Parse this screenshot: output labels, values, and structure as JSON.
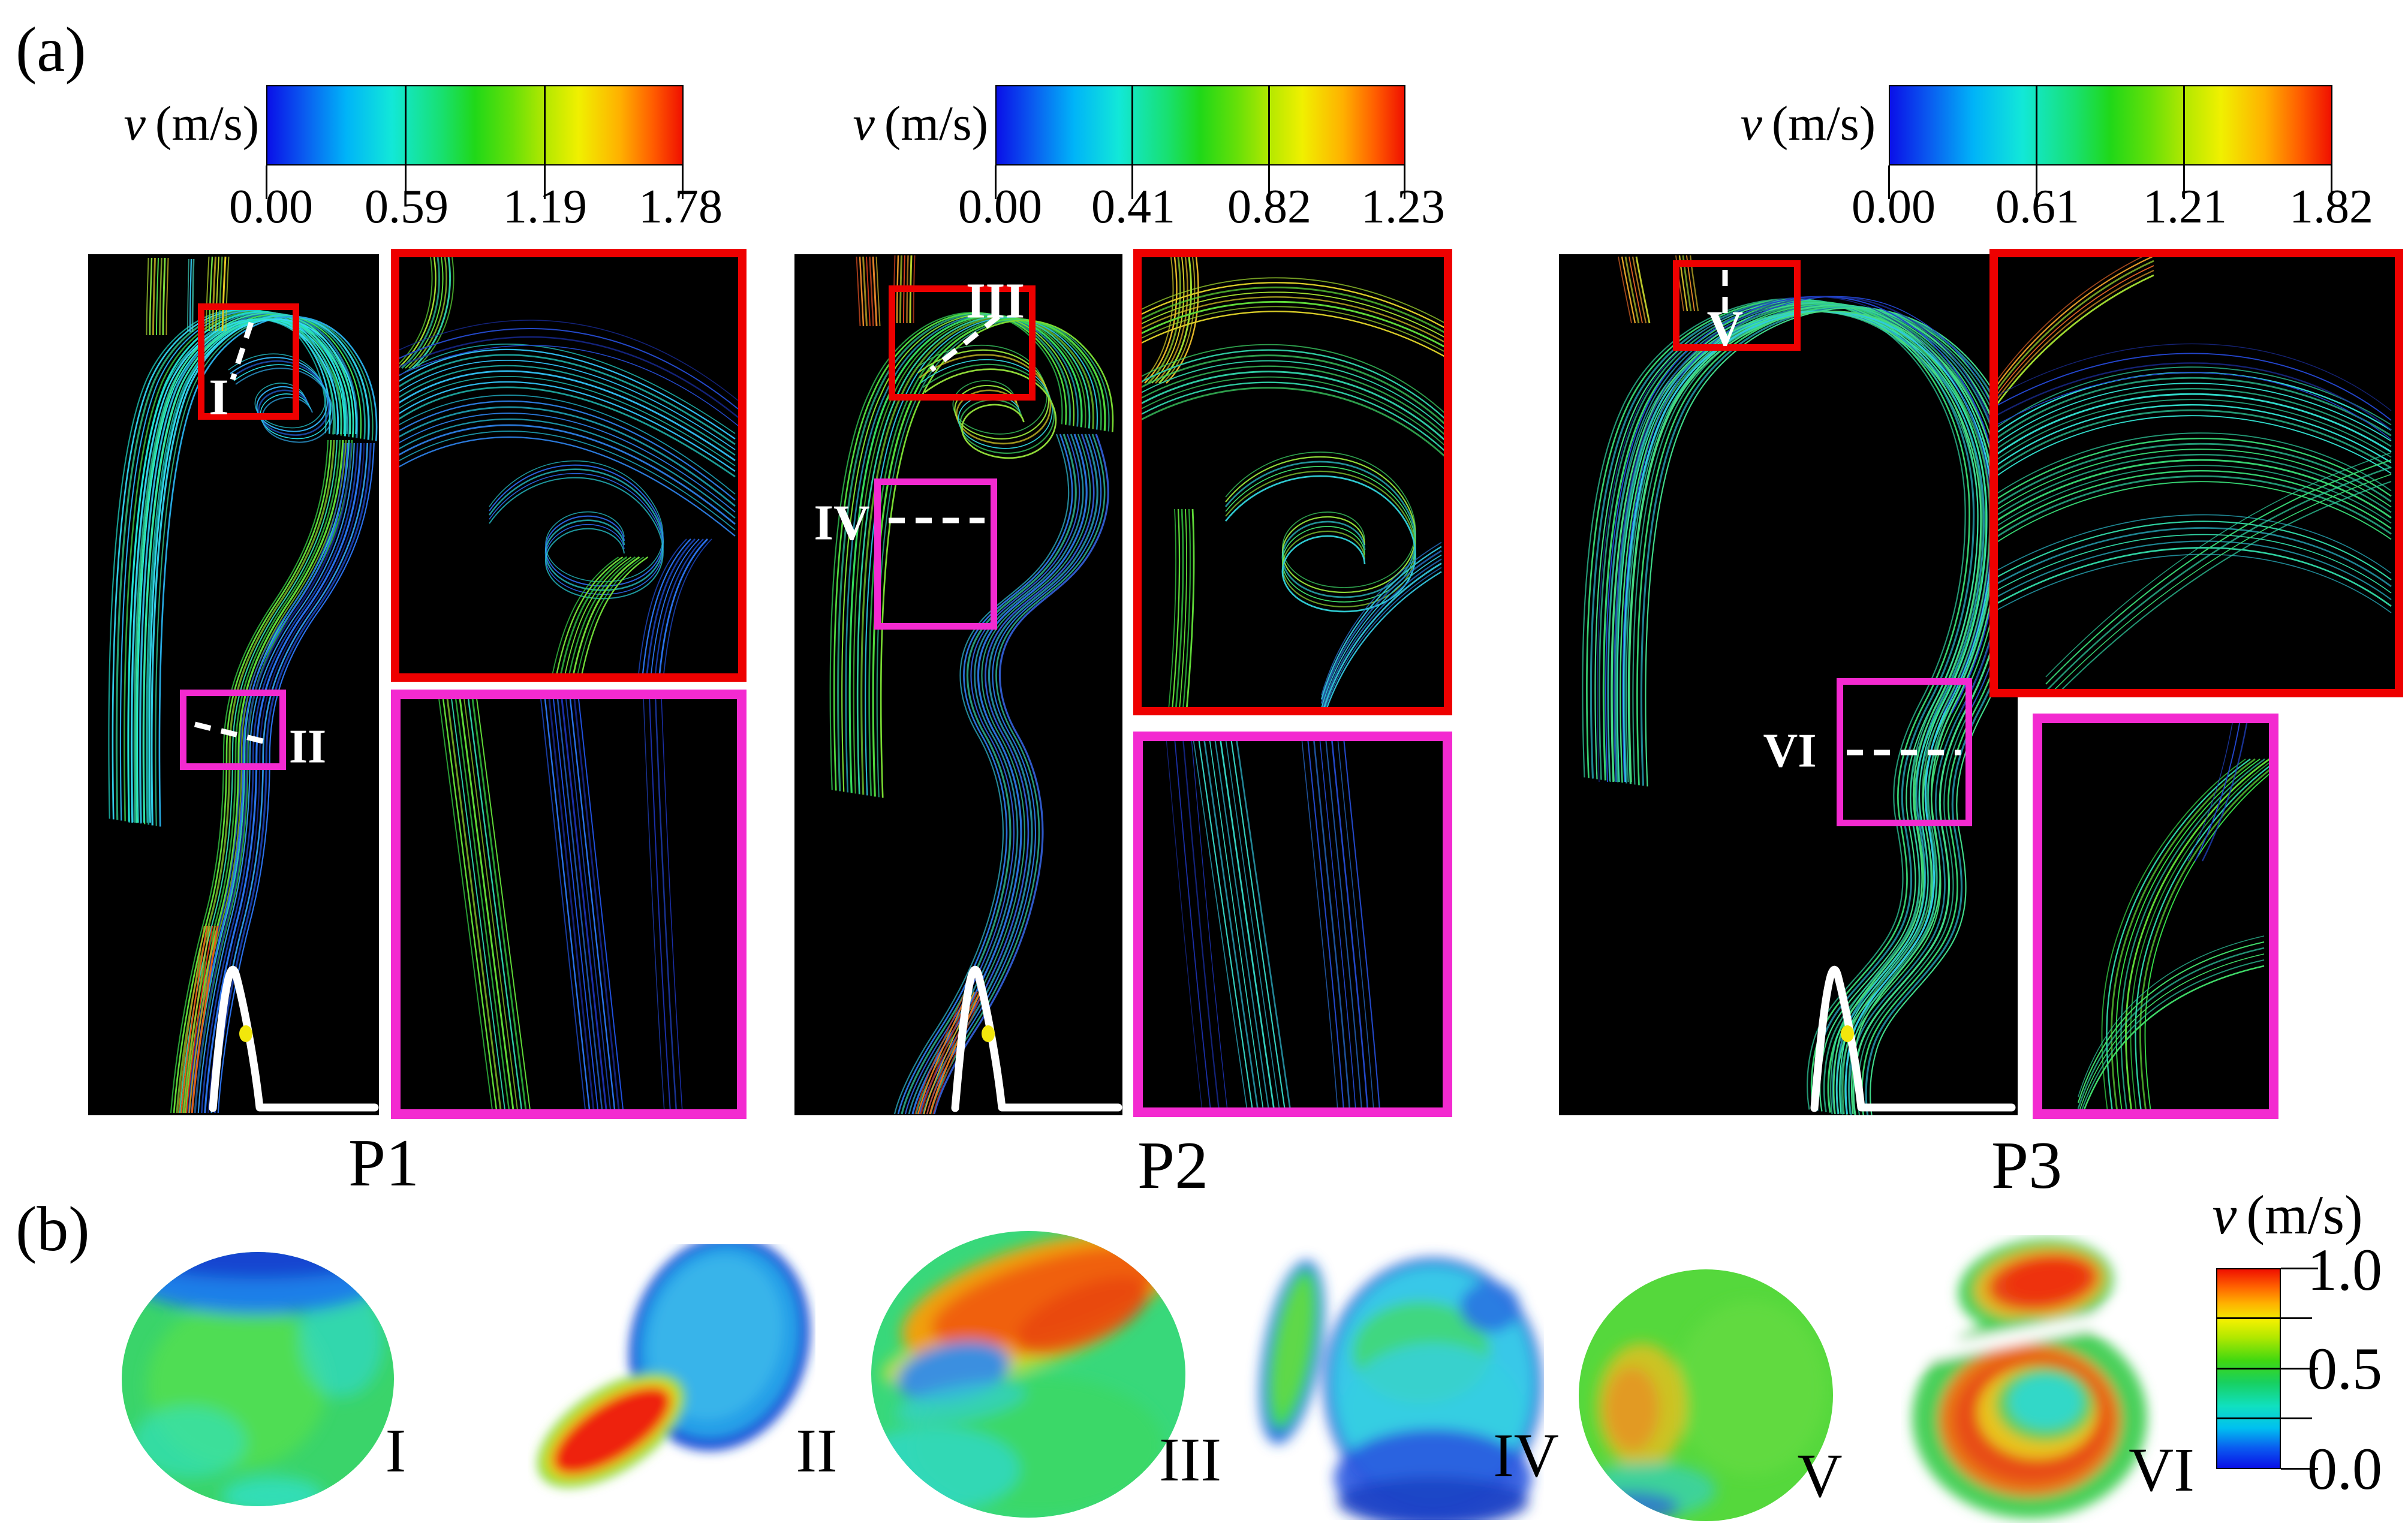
{
  "figure": {
    "panel_a_label": "(a)",
    "panel_b_label": "(b)",
    "velocity_symbol": "v",
    "velocity_unit": "(m/s)",
    "patients": [
      {
        "name": "P1",
        "colorbar": {
          "ticks": [
            "0.00",
            "0.59",
            "1.19",
            "1.78"
          ],
          "min": 0.0,
          "max": 1.78
        },
        "regions": [
          "I",
          "II"
        ]
      },
      {
        "name": "P2",
        "colorbar": {
          "ticks": [
            "0.00",
            "0.41",
            "0.82",
            "1.23"
          ],
          "min": 0.0,
          "max": 1.23
        },
        "regions": [
          "III",
          "IV"
        ]
      },
      {
        "name": "P3",
        "colorbar": {
          "ticks": [
            "0.00",
            "0.61",
            "1.21",
            "1.82"
          ],
          "min": 0.0,
          "max": 1.82
        },
        "regions": [
          "V",
          "VI"
        ]
      }
    ],
    "cross_sections": {
      "labels": [
        "I",
        "II",
        "III",
        "IV",
        "V",
        "VI"
      ],
      "colorbar": {
        "ticks": [
          "1.0",
          "0.5",
          "0.0"
        ],
        "min": 0.0,
        "max": 1.0
      }
    },
    "colors": {
      "colormap_jet": [
        "#0a10e8",
        "#00b4f8",
        "#18e070",
        "#f0f000",
        "#f01000"
      ],
      "region_box_red": "#ee0000",
      "region_box_magenta": "#f32ad0",
      "timepoint_marker": "#f2e70c",
      "streamline_background": "#000000"
    }
  }
}
